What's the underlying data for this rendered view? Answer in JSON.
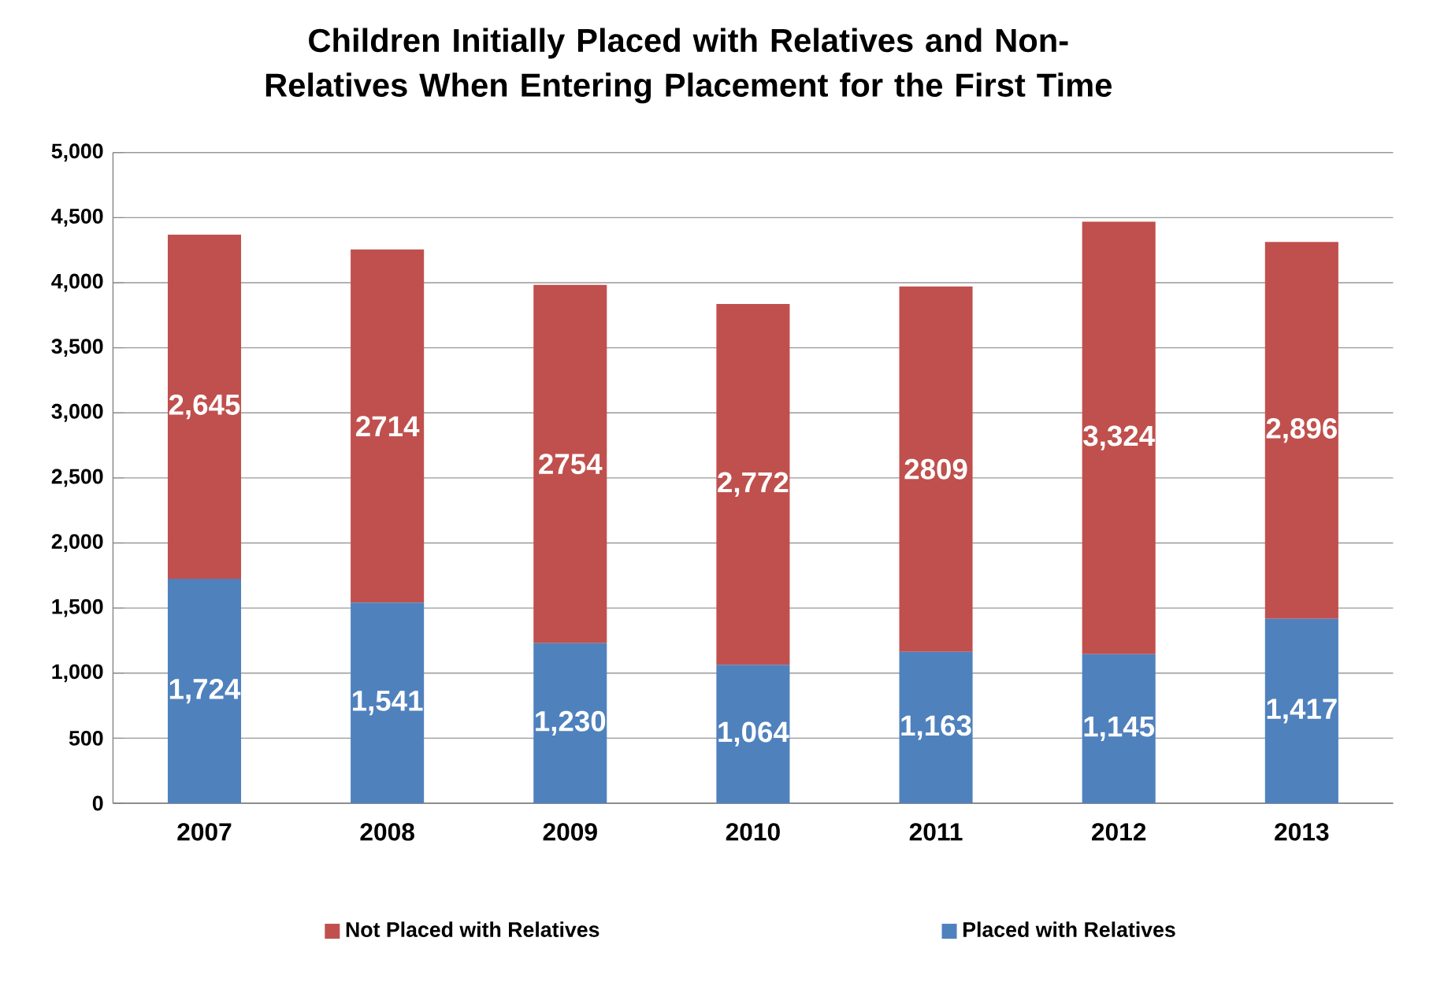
{
  "chart_data": {
    "type": "bar",
    "stacked": true,
    "title": "Children Initially Placed with Relatives and Non-Relatives When Entering Placement for the First Time",
    "categories": [
      "2007",
      "2008",
      "2009",
      "2010",
      "2011",
      "2012",
      "2013"
    ],
    "series": [
      {
        "name": "Placed with Relatives",
        "color": "#4f81bd",
        "values": [
          1724,
          1541,
          1230,
          1064,
          1163,
          1145,
          1417
        ],
        "value_labels": [
          "1,724",
          "1,541",
          "1,230",
          "1,064",
          "1,163",
          "1,145",
          "1,417"
        ]
      },
      {
        "name": "Not Placed with Relatives",
        "color": "#c0504d",
        "values": [
          2645,
          2714,
          2754,
          2772,
          2809,
          3324,
          2896
        ],
        "value_labels": [
          "2,645",
          "2714",
          "2754",
          "2,772",
          "2809",
          "3,324",
          "2,896"
        ]
      }
    ],
    "ylim": [
      0,
      5000
    ],
    "yticks": [
      0,
      500,
      {
        "value": 1000,
        "label": "1,000"
      },
      {
        "value": 1500,
        "label": "1,500"
      },
      {
        "value": 2000,
        "label": "2,000"
      },
      {
        "value": 2500,
        "label": "2,500"
      },
      {
        "value": 3000,
        "label": "3,000"
      },
      {
        "value": 3500,
        "label": "3,500"
      },
      {
        "value": 4000,
        "label": "4,000"
      },
      {
        "value": 4500,
        "label": "4,500"
      },
      {
        "value": 5000,
        "label": "5,000"
      }
    ],
    "grid": "y",
    "legend": "bottom"
  }
}
